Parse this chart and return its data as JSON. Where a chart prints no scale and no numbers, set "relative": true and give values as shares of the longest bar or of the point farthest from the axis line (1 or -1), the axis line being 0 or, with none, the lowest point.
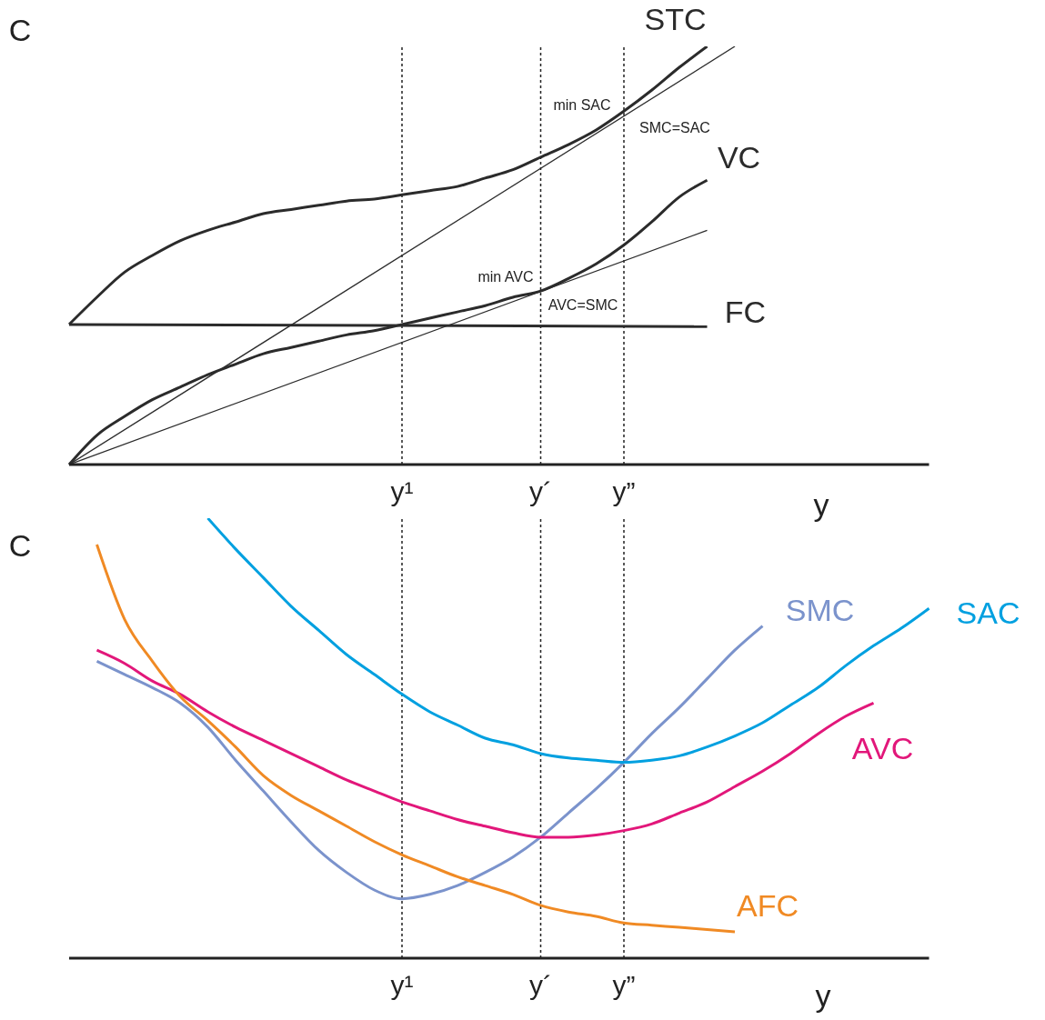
{
  "chart_data": [
    {
      "type": "line",
      "relative": true,
      "xlabel": "y",
      "ylabel": "C",
      "categories": [
        null,
        null,
        null,
        null,
        null,
        null,
        null,
        null,
        null,
        null,
        null,
        null,
        "y¹",
        null,
        null,
        null,
        null,
        "y´",
        null,
        null,
        "y”",
        null,
        null,
        null,
        null,
        null,
        null,
        null,
        null,
        null,
        null,
        null
      ],
      "series": [
        {
          "name": "STC",
          "color": "#2b2b2b",
          "values": [
            0.335,
            0.4,
            0.46,
            0.5,
            0.535,
            0.56,
            0.58,
            0.6,
            0.61,
            0.62,
            0.63,
            0.635,
            0.645,
            0.655,
            0.665,
            0.685,
            0.705,
            0.735,
            0.765,
            0.8,
            0.845,
            0.895,
            0.95,
            1.0,
            null,
            null,
            null,
            null,
            null,
            null,
            null,
            null
          ]
        },
        {
          "color": "#2b2b2b",
          "values": [
            0,
            null,
            null,
            null,
            null,
            null,
            null,
            null,
            null,
            null,
            null,
            null,
            null,
            null,
            null,
            null,
            null,
            null,
            null,
            null,
            null,
            null,
            null,
            null,
            1.0,
            null,
            null,
            null,
            null,
            null,
            null,
            null
          ]
        },
        {
          "name": "VC",
          "color": "#2b2b2b",
          "values": [
            0,
            0.07,
            0.115,
            0.155,
            0.185,
            0.215,
            0.24,
            0.265,
            0.28,
            0.295,
            0.31,
            0.32,
            0.335,
            0.35,
            0.365,
            0.38,
            0.4,
            0.415,
            0.445,
            0.48,
            0.525,
            0.58,
            0.64,
            0.68,
            null,
            null,
            null,
            null,
            null,
            null,
            null,
            null
          ]
        },
        {
          "color": "#2b2b2b",
          "values": [
            0,
            null,
            null,
            null,
            null,
            null,
            null,
            null,
            null,
            null,
            null,
            null,
            null,
            null,
            null,
            null,
            null,
            null,
            null,
            null,
            null,
            null,
            null,
            0.56,
            null,
            null,
            null,
            null,
            null,
            null,
            null,
            null
          ]
        },
        {
          "name": "FC",
          "color": "#2b2b2b",
          "values": [
            0.335,
            null,
            null,
            null,
            null,
            null,
            null,
            null,
            null,
            null,
            null,
            null,
            null,
            null,
            null,
            null,
            null,
            null,
            null,
            null,
            null,
            null,
            null,
            0.33,
            null,
            null,
            null,
            null,
            null,
            null,
            null,
            null
          ]
        }
      ],
      "ref_lines": [
        {
          "axis": "x",
          "value": "y¹",
          "line_style": "dotted"
        },
        {
          "axis": "x",
          "value": "y´",
          "line_style": "dotted"
        },
        {
          "axis": "x",
          "value": "y”",
          "line_style": "dotted"
        }
      ],
      "annotations": [
        "min SAC",
        "SMC=SAC",
        "min AVC",
        "AVC=SMC"
      ]
    },
    {
      "type": "line",
      "relative": true,
      "xlabel": "y",
      "ylabel": "C",
      "categories": [
        null,
        null,
        null,
        null,
        null,
        null,
        null,
        null,
        null,
        null,
        null,
        null,
        "y¹",
        null,
        null,
        null,
        null,
        "y´",
        null,
        null,
        "y”",
        null,
        null,
        null,
        null,
        null,
        null,
        null,
        null,
        null,
        null,
        null
      ],
      "series": [
        {
          "name": "SMC",
          "color": "#7b93cc",
          "values": [
            null,
            0.675,
            0.645,
            0.615,
            0.58,
            0.525,
            0.45,
            0.38,
            0.31,
            0.245,
            0.195,
            0.155,
            0.135,
            0.145,
            0.165,
            0.195,
            0.23,
            0.275,
            0.33,
            0.385,
            0.445,
            0.51,
            0.57,
            0.635,
            0.7,
            0.755,
            null,
            null,
            null,
            null,
            null,
            null
          ]
        },
        {
          "name": "SAC",
          "color": "#00a0e0",
          "values": [
            null,
            null,
            null,
            null,
            null,
            1.0,
            0.93,
            0.865,
            0.8,
            0.745,
            0.69,
            0.645,
            0.6,
            0.56,
            0.53,
            0.5,
            0.485,
            0.465,
            0.455,
            0.45,
            0.445,
            0.45,
            0.46,
            0.48,
            0.505,
            0.535,
            0.575,
            0.615,
            0.665,
            0.71,
            0.75,
            0.795
          ]
        },
        {
          "name": "AVC",
          "color": "#e2177a",
          "values": [
            null,
            0.7,
            0.67,
            0.63,
            0.6,
            0.56,
            0.525,
            0.495,
            0.465,
            0.435,
            0.405,
            0.38,
            0.355,
            0.335,
            0.315,
            0.3,
            0.285,
            0.275,
            0.275,
            0.28,
            0.29,
            0.305,
            0.33,
            0.355,
            0.39,
            0.425,
            0.465,
            0.51,
            0.55,
            0.58,
            null,
            null
          ]
        },
        {
          "name": "AFC",
          "color": "#f08a24",
          "values": [
            null,
            0.94,
            0.77,
            0.675,
            0.595,
            0.54,
            0.48,
            0.415,
            0.37,
            0.335,
            0.3,
            0.265,
            0.235,
            0.21,
            0.185,
            0.165,
            0.145,
            0.12,
            0.105,
            0.095,
            0.08,
            0.075,
            0.07,
            0.065,
            0.06,
            null,
            null,
            null,
            null,
            null,
            null,
            null
          ]
        }
      ],
      "ref_lines": [
        {
          "axis": "x",
          "value": "y¹",
          "line_style": "dotted"
        },
        {
          "axis": "x",
          "value": "y´",
          "line_style": "dotted"
        },
        {
          "axis": "x",
          "value": "y”",
          "line_style": "dotted"
        }
      ]
    }
  ]
}
